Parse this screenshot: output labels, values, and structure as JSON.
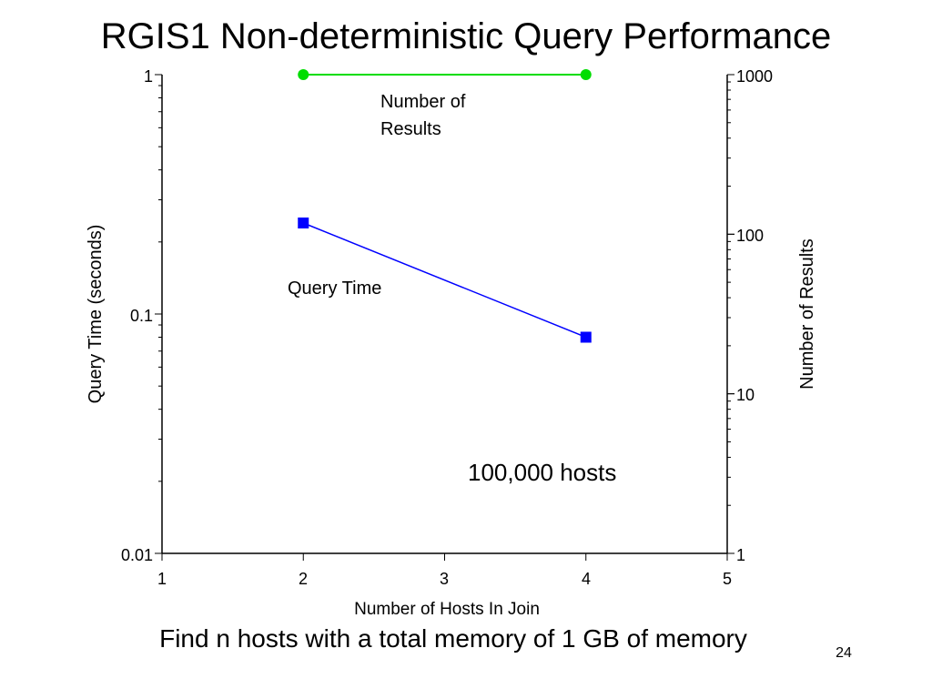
{
  "slide": {
    "title": "RGIS1 Non-deterministic Query Performance",
    "subtitle": "Find n hosts with a total memory of 1 GB of memory",
    "page_number": "24"
  },
  "chart_data": {
    "type": "line",
    "title": "RGIS1 Non-deterministic Query Performance",
    "xlabel": "Number of Hosts In Join",
    "ylabel": "Query Time (seconds)",
    "y2label": "Number of Results",
    "xlim": [
      1,
      5
    ],
    "ylim": [
      0.01,
      1
    ],
    "y2lim": [
      1,
      1000
    ],
    "x_ticks": [
      "1",
      "2",
      "3",
      "4",
      "5"
    ],
    "y_ticks": [
      "0.01",
      "0.1",
      "1"
    ],
    "y2_ticks": [
      "1",
      "10",
      "100",
      "1000"
    ],
    "y_scale": "log",
    "y2_scale": "log",
    "grid": false,
    "series": [
      {
        "name": "Query Time",
        "axis": "left",
        "color": "#0000ff",
        "marker": "square",
        "x": [
          2,
          4
        ],
        "values": [
          0.24,
          0.08
        ]
      },
      {
        "name": "Number of Results",
        "axis": "right",
        "color": "#00dd00",
        "marker": "circle",
        "x": [
          2,
          4
        ],
        "values": [
          1000,
          1000
        ]
      }
    ],
    "annotations": {
      "results_label_line1": "Number of",
      "results_label_line2": "Results",
      "query_time_label": "Query Time",
      "hosts_note": "100,000 hosts"
    }
  }
}
